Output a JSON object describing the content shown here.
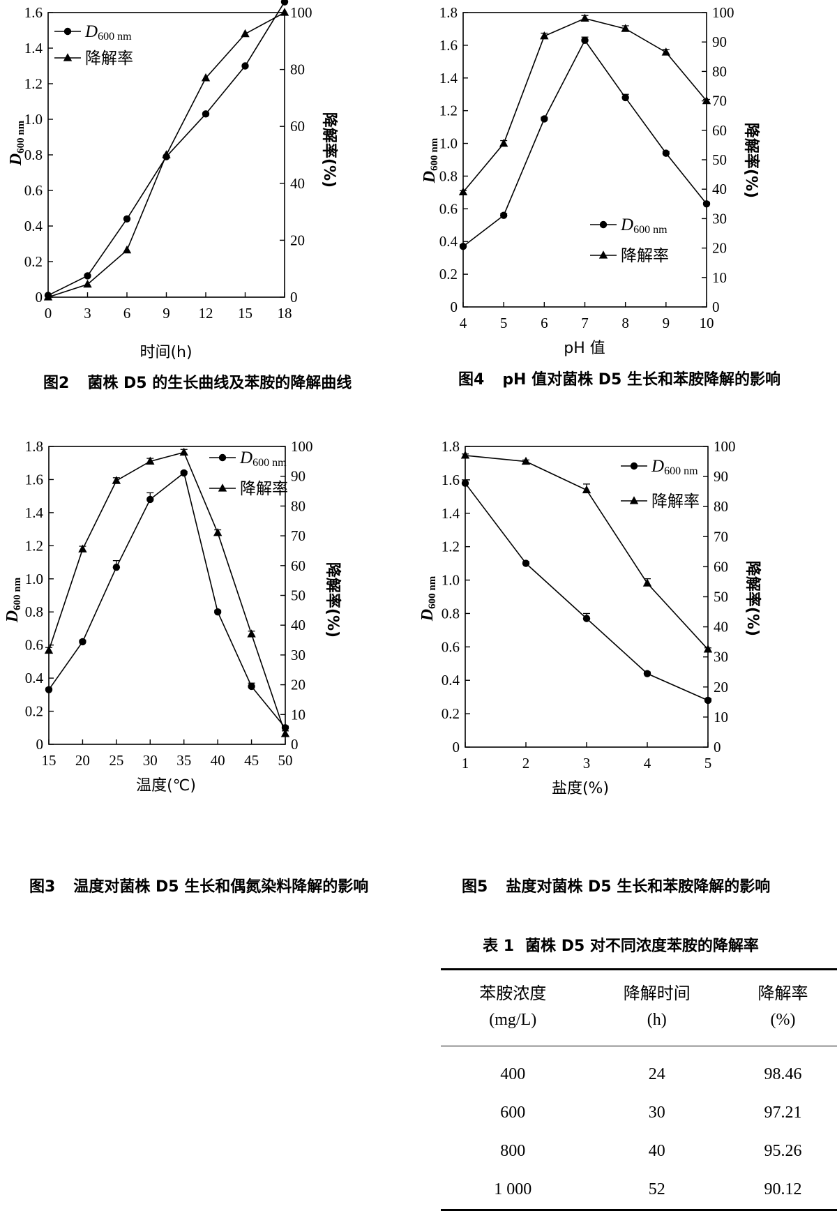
{
  "chart_data": [
    {
      "id": "fig2",
      "type": "line",
      "caption_num": "图2",
      "caption_text": "菌株 D5 的生长曲线及苯胺的降解曲线",
      "xlabel": "时间(h)",
      "ylabel_left": "D600 nm",
      "ylabel_right": "降解率(%)",
      "xlim": [
        0,
        18
      ],
      "ylim_left": [
        0,
        1.6
      ],
      "ylim_right": [
        0,
        100
      ],
      "x_ticks": [
        0,
        3,
        6,
        9,
        12,
        15,
        18
      ],
      "x_tick_labels": [
        "0",
        "3",
        "6",
        "9",
        "12",
        "15",
        "18"
      ],
      "yl_ticks": [
        0,
        0.2,
        0.4,
        0.6,
        0.8,
        1.0,
        1.2,
        1.4,
        1.6
      ],
      "yl_tick_labels": [
        "0",
        "0.2",
        "0.4",
        "0.6",
        "0.8",
        "1.0",
        "1.2",
        "1.4",
        "1.6"
      ],
      "yr_ticks": [
        0,
        20,
        40,
        60,
        80,
        100
      ],
      "yr_tick_labels": [
        "0",
        "20",
        "40",
        "60",
        "80",
        "100"
      ],
      "legend": "top-left",
      "grid": false,
      "series": [
        {
          "name": "D600 nm",
          "axis": "left",
          "marker": "circle",
          "x": [
            0,
            3,
            6,
            9,
            12,
            15,
            18
          ],
          "y": [
            0.01,
            0.12,
            0.44,
            0.79,
            1.03,
            1.3,
            1.66
          ],
          "err": [
            0,
            0,
            0,
            0,
            0,
            0,
            0
          ]
        },
        {
          "name": "降解率",
          "axis": "right",
          "marker": "triangle",
          "x": [
            0,
            3,
            6,
            9,
            12,
            15,
            18
          ],
          "y": [
            0,
            4.5,
            16.5,
            50,
            77,
            92.5,
            100
          ],
          "err": [
            0,
            0,
            0,
            0,
            0,
            0,
            0
          ]
        }
      ]
    },
    {
      "id": "fig4",
      "type": "line",
      "caption_num": "图4",
      "caption_text": "pH 值对菌株 D5 生长和苯胺降解的影响",
      "xlabel": "pH 值",
      "ylabel_left": "D600 nm",
      "ylabel_right": "降解率(%)",
      "xlim": [
        4,
        10
      ],
      "ylim_left": [
        0,
        1.8
      ],
      "ylim_right": [
        0,
        100
      ],
      "x_ticks": [
        4,
        5,
        6,
        7,
        8,
        9,
        10
      ],
      "x_tick_labels": [
        "4",
        "5",
        "6",
        "7",
        "8",
        "9",
        "10"
      ],
      "yl_ticks": [
        0,
        0.2,
        0.4,
        0.6,
        0.8,
        1.0,
        1.2,
        1.4,
        1.6,
        1.8
      ],
      "yl_tick_labels": [
        "0",
        "0.2",
        "0.4",
        "0.6",
        "0.8",
        "1.0",
        "1.2",
        "1.4",
        "1.6",
        "1.8"
      ],
      "yr_ticks": [
        0,
        10,
        20,
        30,
        40,
        50,
        60,
        70,
        80,
        90,
        100
      ],
      "yr_tick_labels": [
        "0",
        "10",
        "20",
        "30",
        "40",
        "50",
        "60",
        "70",
        "80",
        "90",
        "100"
      ],
      "legend": "bottom-center",
      "grid": false,
      "series": [
        {
          "name": "D600 nm",
          "axis": "left",
          "marker": "circle",
          "x": [
            4,
            5,
            6,
            7,
            8,
            9,
            10
          ],
          "y": [
            0.37,
            0.56,
            1.15,
            1.63,
            1.28,
            0.94,
            0.63
          ],
          "err": [
            0.01,
            0.01,
            0.01,
            0.02,
            0.02,
            0.01,
            0.01
          ]
        },
        {
          "name": "降解率",
          "axis": "right",
          "marker": "triangle",
          "x": [
            4,
            5,
            6,
            7,
            8,
            9,
            10
          ],
          "y": [
            39,
            55.5,
            92,
            98,
            94.5,
            86.5,
            70
          ],
          "err": [
            0.5,
            1,
            1,
            1,
            1,
            1,
            0.5
          ]
        }
      ]
    },
    {
      "id": "fig3",
      "type": "line",
      "caption_num": "图3",
      "caption_text": "温度对菌株 D5 生长和偶氮染料降解的影响",
      "xlabel": "温度(℃)",
      "ylabel_left": "D600 nm",
      "ylabel_right": "降解率(%)",
      "xlim": [
        15,
        50
      ],
      "ylim_left": [
        0,
        1.8
      ],
      "ylim_right": [
        0,
        100
      ],
      "x_ticks": [
        15,
        20,
        25,
        30,
        35,
        40,
        45,
        50
      ],
      "x_tick_labels": [
        "15",
        "20",
        "25",
        "30",
        "35",
        "40",
        "45",
        "50"
      ],
      "yl_ticks": [
        0,
        0.2,
        0.4,
        0.6,
        0.8,
        1.0,
        1.2,
        1.4,
        1.6,
        1.8
      ],
      "yl_tick_labels": [
        "0",
        "0.2",
        "0.4",
        "0.6",
        "0.8",
        "1.0",
        "1.2",
        "1.4",
        "1.6",
        "1.8"
      ],
      "yr_ticks": [
        0,
        10,
        20,
        30,
        40,
        50,
        60,
        70,
        80,
        90,
        100
      ],
      "yr_tick_labels": [
        "0",
        "10",
        "20",
        "30",
        "40",
        "50",
        "60",
        "70",
        "80",
        "90",
        "100"
      ],
      "legend": "top-right",
      "grid": false,
      "series": [
        {
          "name": "D600 nm",
          "axis": "left",
          "marker": "circle",
          "x": [
            15,
            20,
            25,
            30,
            35,
            40,
            45,
            50
          ],
          "y": [
            0.33,
            0.62,
            1.07,
            1.48,
            1.64,
            0.8,
            0.35,
            0.1
          ],
          "err": [
            0.01,
            0.01,
            0.04,
            0.04,
            0.01,
            0.01,
            0.02,
            0.01
          ]
        },
        {
          "name": "降解率",
          "axis": "right",
          "marker": "triangle",
          "x": [
            15,
            20,
            25,
            30,
            35,
            40,
            45,
            50
          ],
          "y": [
            31.5,
            65.5,
            88.5,
            95,
            98,
            71,
            37,
            3.5
          ],
          "err": [
            1,
            1,
            1,
            1,
            1,
            1,
            1,
            1
          ]
        }
      ]
    },
    {
      "id": "fig5",
      "type": "line",
      "caption_num": "图5",
      "caption_text": "盐度对菌株 D5 生长和苯胺降解的影响",
      "xlabel": "盐度(%)",
      "ylabel_left": "D600 nm",
      "ylabel_right": "降解率(%)",
      "xlim": [
        1,
        5
      ],
      "ylim_left": [
        0,
        1.8
      ],
      "ylim_right": [
        0,
        100
      ],
      "x_ticks": [
        1,
        2,
        3,
        4,
        5
      ],
      "x_tick_labels": [
        "1",
        "2",
        "3",
        "4",
        "5"
      ],
      "yl_ticks": [
        0,
        0.2,
        0.4,
        0.6,
        0.8,
        1.0,
        1.2,
        1.4,
        1.6,
        1.8
      ],
      "yl_tick_labels": [
        "0",
        "0.2",
        "0.4",
        "0.6",
        "0.8",
        "1.0",
        "1.2",
        "1.4",
        "1.6",
        "1.8"
      ],
      "yr_ticks": [
        0,
        10,
        20,
        30,
        40,
        50,
        60,
        70,
        80,
        90,
        100
      ],
      "yr_tick_labels": [
        "0",
        "10",
        "20",
        "30",
        "40",
        "50",
        "60",
        "70",
        "80",
        "90",
        "100"
      ],
      "legend": "top-right",
      "grid": false,
      "series": [
        {
          "name": "D600 nm",
          "axis": "left",
          "marker": "circle",
          "x": [
            1,
            2,
            3,
            4,
            5
          ],
          "y": [
            1.58,
            1.1,
            0.77,
            0.44,
            0.28
          ],
          "err": [
            0.02,
            0.01,
            0.03,
            0.01,
            0.01
          ]
        },
        {
          "name": "降解率",
          "axis": "right",
          "marker": "triangle",
          "x": [
            1,
            2,
            3,
            4,
            5
          ],
          "y": [
            97,
            95,
            85.5,
            54.5,
            32.5
          ],
          "err": [
            0.5,
            0.5,
            2,
            1.5,
            0.5
          ]
        }
      ]
    }
  ],
  "table": {
    "title_num": "表 1",
    "title_text": "菌株 D5 对不同浓度苯胺的降解率",
    "headers": [
      {
        "label": "苯胺浓度",
        "unit": "(mg/L)"
      },
      {
        "label": "降解时间",
        "unit": "(h)"
      },
      {
        "label": "降解率",
        "unit": "(%)"
      }
    ],
    "rows": [
      [
        "400",
        "24",
        "98.46"
      ],
      [
        "600",
        "30",
        "97.21"
      ],
      [
        "800",
        "40",
        "95.26"
      ],
      [
        "1 000",
        "52",
        "90.12"
      ]
    ]
  }
}
